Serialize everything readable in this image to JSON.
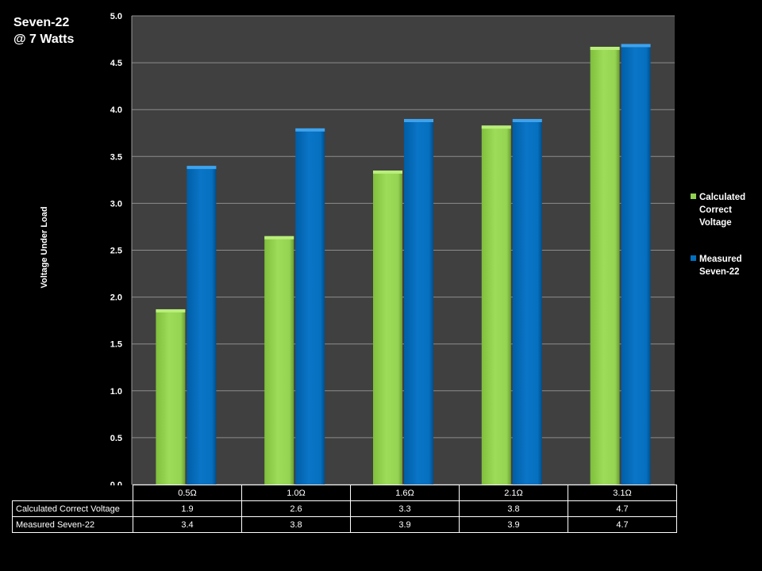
{
  "chart_data": {
    "type": "bar",
    "title": "Seven-22",
    "subtitle": "@ 7 Watts",
    "xlabel": "",
    "ylabel": "Voltage Under Load",
    "categories": [
      "0.5Ω",
      "1.0Ω",
      "1.6Ω",
      "2.1Ω",
      "3.1Ω"
    ],
    "series": [
      {
        "name": "Calculated Correct Voltage",
        "values": [
          1.87,
          2.65,
          3.35,
          3.83,
          4.67
        ],
        "table_values": [
          "1.9",
          "2.6",
          "3.3",
          "3.8",
          "4.7"
        ],
        "color": "#92d050"
      },
      {
        "name": "Measured Seven-22",
        "values": [
          3.4,
          3.8,
          3.9,
          3.9,
          4.7
        ],
        "table_values": [
          "3.4",
          "3.8",
          "3.9",
          "3.9",
          "4.7"
        ],
        "color": "#0070c0"
      }
    ],
    "ylim": [
      0,
      5
    ],
    "yticks": [
      "0.0",
      "0.5",
      "1.0",
      "1.5",
      "2.0",
      "2.5",
      "3.0",
      "3.5",
      "4.0",
      "4.5",
      "5.0"
    ],
    "grid": true,
    "legend": "right",
    "plot_background": "#404040"
  },
  "legend": {
    "items": [
      {
        "lines": [
          "Calculated",
          "Correct",
          "Voltage"
        ]
      },
      {
        "lines": [
          "Measured",
          "Seven-22"
        ]
      }
    ]
  }
}
